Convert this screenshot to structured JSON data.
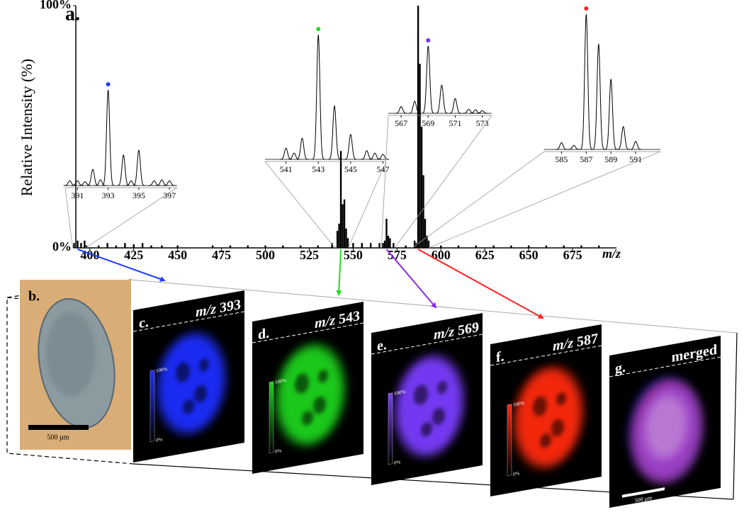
{
  "chart_data": {
    "type": "bar",
    "title": "a.",
    "ylabel": "Relative Intensity (%)",
    "xlabel": "m/z",
    "xlim": [
      392,
      700
    ],
    "ylim": [
      0,
      100
    ],
    "xticks": [
      400,
      425,
      450,
      475,
      500,
      525,
      550,
      575,
      600,
      625,
      650,
      675
    ],
    "yticks": [
      {
        "value": 0,
        "label": "0%"
      },
      {
        "value": 100,
        "label": "100%"
      }
    ],
    "color": "#000000",
    "x": [
      391,
      393,
      395,
      397,
      398,
      405,
      410,
      415,
      420,
      425,
      430,
      435,
      441,
      450,
      470,
      480,
      490,
      500,
      510,
      520,
      530,
      538,
      541,
      542,
      543,
      544,
      545,
      546,
      547,
      550,
      555,
      560,
      565,
      567,
      568,
      569,
      570,
      571,
      573,
      580,
      585,
      586,
      587,
      588,
      589,
      590,
      591,
      592,
      593,
      600,
      610,
      620,
      630,
      640,
      650,
      660,
      670,
      680,
      690
    ],
    "values": [
      2,
      3,
      2,
      3,
      1,
      1,
      2,
      1,
      2,
      1.5,
      2,
      1,
      1,
      1,
      1,
      1,
      1,
      1,
      1,
      1,
      1,
      2,
      7,
      10,
      40,
      18,
      20,
      8,
      4,
      2,
      2,
      2,
      2,
      2,
      3,
      12,
      5,
      4,
      2,
      1,
      3,
      2,
      100,
      76,
      50,
      30,
      12,
      5,
      3,
      1,
      1,
      1,
      1,
      1,
      1,
      1,
      1,
      1,
      1
    ],
    "insets": [
      {
        "xlim": [
          390.2,
          397.5
        ],
        "xticks": [
          391,
          393,
          395,
          397
        ],
        "x": [
          390.5,
          391,
          391.5,
          392,
          392.5,
          393,
          394,
          394.5,
          395,
          396,
          396.5,
          397
        ],
        "values": [
          5,
          5,
          4,
          17,
          6,
          100,
          32,
          5,
          37,
          5,
          6,
          5
        ],
        "star_x": 393,
        "star_color": "#1f3cff"
      },
      {
        "xlim": [
          539.7,
          547.2
        ],
        "xticks": [
          541,
          543,
          545,
          547
        ],
        "x": [
          541,
          541.5,
          542,
          543,
          544,
          545,
          546,
          546.5,
          547
        ],
        "values": [
          9,
          5,
          17,
          100,
          43,
          20,
          7,
          5,
          4
        ],
        "star_x": 543,
        "star_color": "#22dd22"
      },
      {
        "xlim": [
          566.05,
          573.7
        ],
        "xticks": [
          567,
          569,
          571,
          573
        ],
        "x": [
          567,
          568,
          569,
          570,
          571,
          572,
          572.5,
          573
        ],
        "values": [
          10,
          18,
          100,
          42,
          22,
          6,
          5,
          4
        ],
        "star_x": 569,
        "star_color": "#8a2be2"
      },
      {
        "xlim": [
          583.6,
          593.0
        ],
        "xticks": [
          585,
          587,
          589,
          591
        ],
        "x": [
          585,
          586,
          587,
          588,
          589,
          590,
          591
        ],
        "values": [
          5,
          3,
          100,
          78,
          52,
          17,
          6
        ],
        "star_x": 587,
        "star_color": "#ff2020"
      }
    ]
  },
  "panels": [
    {
      "label": "b.",
      "scale_bar": "500 µm"
    },
    {
      "label": "c.",
      "prefix": "m/z",
      "mz": 393,
      "colorbar_max": "100%",
      "colorbar_min": "0%",
      "color": "#1f2dff"
    },
    {
      "label": "d.",
      "prefix": "m/z",
      "mz": 543,
      "colorbar_max": "100%",
      "colorbar_min": "0%",
      "color": "#1ed21e"
    },
    {
      "label": "e.",
      "prefix": "m/z",
      "mz": 569,
      "colorbar_max": "100%",
      "colorbar_min": "0%",
      "color": "#7a3dff"
    },
    {
      "label": "f.",
      "prefix": "m/z",
      "mz": 587,
      "colorbar_max": "100%",
      "colorbar_min": "0%",
      "color": "#ff2a10"
    },
    {
      "label": "g.",
      "title": "merged",
      "scale_bar": "500 µm"
    }
  ]
}
